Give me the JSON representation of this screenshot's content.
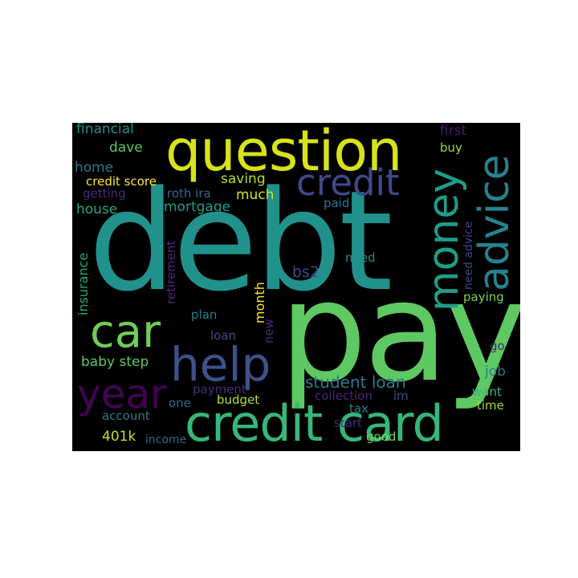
{
  "wordcloud": {
    "background": "#000000",
    "words": [
      {
        "text": "debt",
        "color": "#21918c"
      },
      {
        "text": "pay",
        "color": "#5ec962"
      },
      {
        "text": "question",
        "color": "#d8e219"
      },
      {
        "text": "credit card",
        "color": "#35b779"
      },
      {
        "text": "money",
        "color": "#1f9e89"
      },
      {
        "text": "advice",
        "color": "#26828e"
      },
      {
        "text": "credit",
        "color": "#3e4a89"
      },
      {
        "text": "car",
        "color": "#6ece58"
      },
      {
        "text": "help",
        "color": "#3b528b"
      },
      {
        "text": "year",
        "color": "#440154"
      },
      {
        "text": "student loan",
        "color": "#2a788e"
      },
      {
        "text": "bs2",
        "color": "#3e4a89"
      },
      {
        "text": "financial",
        "color": "#21918c"
      },
      {
        "text": "first",
        "color": "#481a6c"
      },
      {
        "text": "buy",
        "color": "#a0da39"
      },
      {
        "text": "dave",
        "color": "#5ec962"
      },
      {
        "text": "home",
        "color": "#2a788e"
      },
      {
        "text": "credit score",
        "color": "#fde725"
      },
      {
        "text": "saving",
        "color": "#b5de2b"
      },
      {
        "text": "getting",
        "color": "#482878"
      },
      {
        "text": "roth ira",
        "color": "#31688e"
      },
      {
        "text": "much",
        "color": "#d8e219"
      },
      {
        "text": "house",
        "color": "#22a884"
      },
      {
        "text": "mortgage",
        "color": "#1f9e89"
      },
      {
        "text": "paid",
        "color": "#2a788e"
      },
      {
        "text": "need advice",
        "color": "#414487"
      },
      {
        "text": "insurance",
        "color": "#22a884"
      },
      {
        "text": "retirement",
        "color": "#472d7b"
      },
      {
        "text": "need",
        "color": "#21918c"
      },
      {
        "text": "month",
        "color": "#fde725"
      },
      {
        "text": "new",
        "color": "#482878"
      },
      {
        "text": "paying",
        "color": "#7ad151"
      },
      {
        "text": "plan",
        "color": "#26828e"
      },
      {
        "text": "loan",
        "color": "#3b528b"
      },
      {
        "text": "go",
        "color": "#482878"
      },
      {
        "text": "baby step",
        "color": "#5ec962"
      },
      {
        "text": "job",
        "color": "#2a788e"
      },
      {
        "text": "payment",
        "color": "#472d7b"
      },
      {
        "text": "want",
        "color": "#35b779"
      },
      {
        "text": "collection",
        "color": "#482878"
      },
      {
        "text": "im",
        "color": "#3e4a89"
      },
      {
        "text": "one",
        "color": "#31688e"
      },
      {
        "text": "budget",
        "color": "#b5de2b"
      },
      {
        "text": "account",
        "color": "#2a788e"
      },
      {
        "text": "tax",
        "color": "#26828e"
      },
      {
        "text": "time",
        "color": "#a0da39"
      },
      {
        "text": "start",
        "color": "#472d7b"
      },
      {
        "text": "401k",
        "color": "#c2df23"
      },
      {
        "text": "income",
        "color": "#31688e"
      },
      {
        "text": "good",
        "color": "#7ad151"
      }
    ]
  }
}
